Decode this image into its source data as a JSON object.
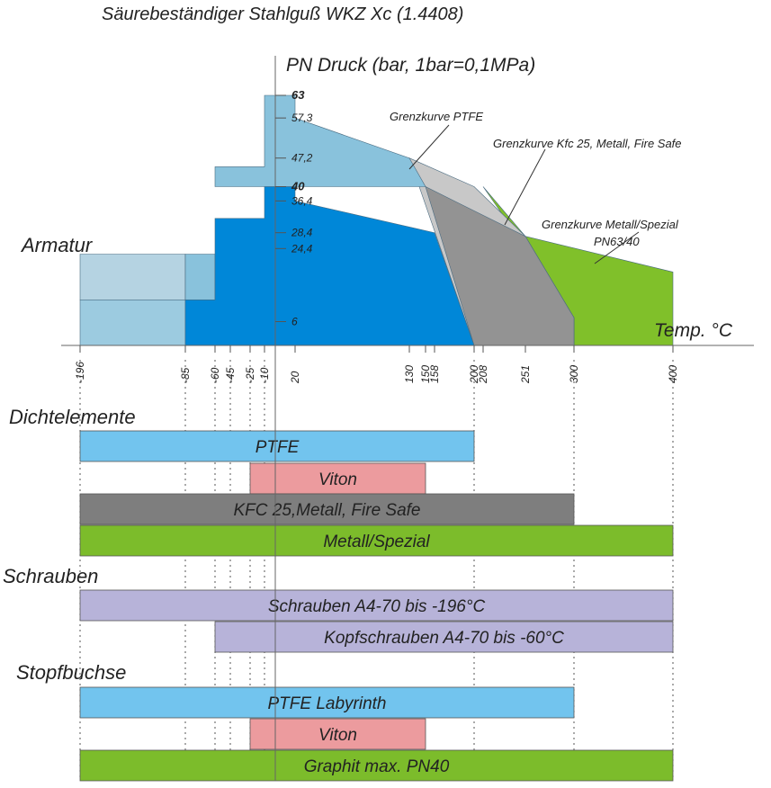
{
  "chart_data": {
    "type": "area",
    "title": "Säurebeständiger Stahlguß WKZ Xc (1.4408)",
    "ylabel": "PN Druck (bar, 1bar=0,1MPa)",
    "xlabel": "Temp. °C",
    "section_armatur": "Armatur",
    "x_ticks": [
      "-196",
      "-85",
      "-60",
      "-45",
      "-25",
      "-10",
      "20",
      "130",
      "150",
      "158",
      "200",
      "208",
      "251",
      "300",
      "400"
    ],
    "x_tick_values": [
      -196,
      -85,
      -60,
      -45,
      -25,
      -10,
      20,
      130,
      150,
      158,
      200,
      208,
      251,
      300,
      400
    ],
    "y_ticks": [
      {
        "value": 63,
        "label": "63",
        "bold": true
      },
      {
        "value": 57.3,
        "label": "57,3",
        "bold": false
      },
      {
        "value": 47.2,
        "label": "47,2",
        "bold": false
      },
      {
        "value": 40,
        "label": "40",
        "bold": true
      },
      {
        "value": 36.4,
        "label": "36,4",
        "bold": false
      },
      {
        "value": 28.4,
        "label": "28,4",
        "bold": false
      },
      {
        "value": 24.4,
        "label": "24,4",
        "bold": false
      },
      {
        "value": 6,
        "label": "6",
        "bold": false
      }
    ],
    "series": [
      {
        "name": "Grenzkurve Metall/Spezial PN63/40",
        "color": "#80c02a",
        "points": [
          [
            251,
            27.5
          ],
          [
            400,
            18.5
          ],
          [
            400,
            0
          ],
          [
            300,
            0
          ],
          [
            300,
            7
          ],
          [
            208,
            40
          ]
        ]
      },
      {
        "name": "Grenzkurve Kfc 25, Metall, Fire Safe",
        "color": "#c8c8c8",
        "points": [
          [
            130,
            47.2
          ],
          [
            200,
            40
          ],
          [
            251,
            27.5
          ],
          [
            300,
            7
          ],
          [
            300,
            0
          ],
          [
            200,
            0
          ]
        ]
      },
      {
        "name": "Grenzkurve PTFE",
        "color": "#939393",
        "points": [
          [
            150,
            40
          ],
          [
            200,
            0
          ],
          [
            300,
            0
          ],
          [
            300,
            7
          ],
          [
            251,
            27.5
          ]
        ]
      },
      {
        "name": "",
        "color": "#b5d3e2",
        "points": [
          [
            -196,
            23
          ],
          [
            -85,
            23
          ],
          [
            -85,
            11.5
          ],
          [
            -196,
            11.5
          ]
        ]
      },
      {
        "name": "",
        "color": "#9ccbe0",
        "points": [
          [
            -196,
            11.5
          ],
          [
            -85,
            11.5
          ],
          [
            -85,
            0
          ],
          [
            -196,
            0
          ]
        ]
      },
      {
        "name": "",
        "color": "#89c2dc",
        "points": [
          [
            -85,
            23
          ],
          [
            -60,
            23
          ],
          [
            -60,
            11.5
          ],
          [
            -85,
            11.5
          ]
        ]
      },
      {
        "name": "",
        "color": "#89c2dc",
        "points": [
          [
            -60,
            45
          ],
          [
            -10,
            45
          ],
          [
            -10,
            63
          ],
          [
            20,
            63
          ],
          [
            20,
            57.3
          ],
          [
            130,
            47.2
          ],
          [
            150,
            40
          ],
          [
            -60,
            40
          ]
        ]
      },
      {
        "name": "",
        "color": "#0087d8",
        "points": [
          [
            -60,
            32
          ],
          [
            -10,
            32
          ],
          [
            -10,
            40
          ],
          [
            20,
            40
          ],
          [
            20,
            36.4
          ],
          [
            158,
            28.4
          ],
          [
            200,
            0
          ],
          [
            -85,
            0
          ],
          [
            -85,
            11.5
          ],
          [
            -60,
            11.5
          ]
        ]
      }
    ],
    "annotations": [
      {
        "text": "Grenzkurve PTFE",
        "x": 150,
        "y": 55
      },
      {
        "text": "Grenzkurve Kfc 25, Metall, Fire Safe",
        "x": 270,
        "y": 49
      },
      {
        "text": "Grenzkurve Metall/Spezial",
        "x": 326,
        "y": 29
      },
      {
        "text": "PN63/40",
        "x": 373,
        "y": 24
      }
    ]
  },
  "bands": [
    {
      "group": "Dichtelemente",
      "label": "PTFE",
      "from": -196,
      "to": 200,
      "color": "#72c4ee"
    },
    {
      "group": "Dichtelemente",
      "label": "Viton",
      "from": -25,
      "to": 150,
      "color": "#ec9b9e"
    },
    {
      "group": "Dichtelemente",
      "label": "KFC 25,Metall, Fire Safe",
      "from": -196,
      "to": 300,
      "color": "#7e7e7e"
    },
    {
      "group": "Dichtelemente",
      "label": "Metall/Spezial",
      "from": -196,
      "to": 400,
      "color": "#7cbc2b"
    },
    {
      "group": "Schrauben",
      "label": "Schrauben A4-70 bis -196°C",
      "from": -196,
      "to": 400,
      "color": "#b7b3d9"
    },
    {
      "group": "Schrauben",
      "label": "Kopfschrauben A4-70 bis -60°C",
      "from": -60,
      "to": 400,
      "color": "#b7b3d9"
    },
    {
      "group": "Stopfbuchse",
      "label": "PTFE Labyrinth",
      "from": -196,
      "to": 300,
      "color": "#72c4ee"
    },
    {
      "group": "Stopfbuchse",
      "label": "Viton",
      "from": -25,
      "to": 150,
      "color": "#ec9b9e"
    },
    {
      "group": "Stopfbuchse",
      "label": "Graphit max. PN40",
      "from": -196,
      "to": 400,
      "color": "#7cbc2b"
    }
  ],
  "group_labels": [
    "Dichtelemente",
    "Schrauben",
    "Stopfbuchse"
  ]
}
